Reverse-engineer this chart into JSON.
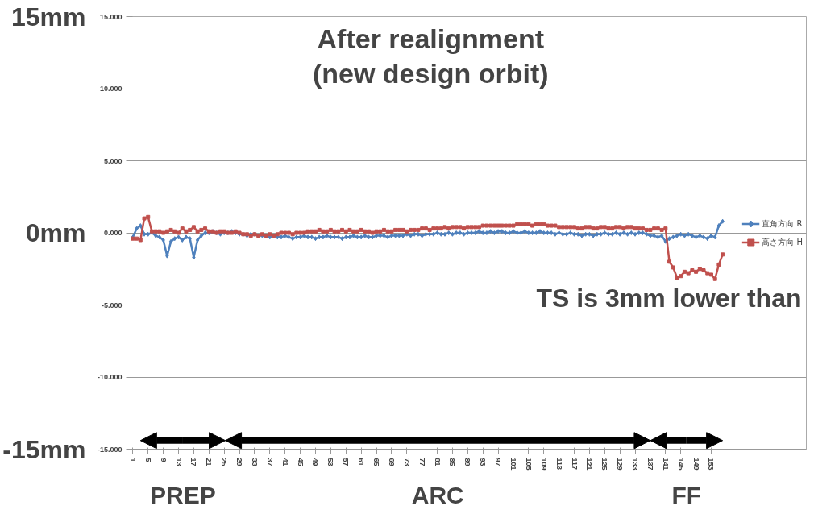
{
  "chart_data": {
    "type": "line",
    "title": "After realignment\n(new design orbit)",
    "x": [
      1,
      2,
      3,
      4,
      5,
      6,
      7,
      8,
      9,
      10,
      11,
      12,
      13,
      14,
      15,
      16,
      17,
      18,
      19,
      20,
      21,
      22,
      23,
      24,
      25,
      26,
      27,
      28,
      29,
      30,
      31,
      32,
      33,
      34,
      35,
      36,
      37,
      38,
      39,
      40,
      41,
      42,
      43,
      44,
      45,
      46,
      47,
      48,
      49,
      50,
      51,
      52,
      53,
      54,
      55,
      56,
      57,
      58,
      59,
      60,
      61,
      62,
      63,
      64,
      65,
      66,
      67,
      68,
      69,
      70,
      71,
      72,
      73,
      74,
      75,
      76,
      77,
      78,
      79,
      80,
      81,
      82,
      83,
      84,
      85,
      86,
      87,
      88,
      89,
      90,
      91,
      92,
      93,
      94,
      95,
      96,
      97,
      98,
      99,
      100,
      101,
      102,
      103,
      104,
      105,
      106,
      107,
      108,
      109,
      110,
      111,
      112,
      113,
      114,
      115,
      116,
      117,
      118,
      119,
      120,
      121,
      122,
      123,
      124,
      125,
      126,
      127,
      128,
      129,
      130,
      131,
      132,
      133,
      134,
      135,
      136,
      137,
      138,
      139,
      140,
      141,
      142,
      143,
      144,
      145,
      146,
      147,
      148,
      149,
      150,
      151,
      152,
      153,
      154,
      155,
      156
    ],
    "series": [
      {
        "name": "直角方向 R",
        "color": "#4f81bd",
        "marker": "diamond",
        "values": [
          -0.3,
          0.3,
          0.5,
          -0.1,
          -0.1,
          0,
          -0.2,
          -0.3,
          -0.5,
          -1.6,
          -0.6,
          -0.4,
          -0.3,
          -0.5,
          -0.3,
          -0.4,
          -1.7,
          -0.5,
          -0.2,
          0,
          0,
          0.1,
          0,
          -0.1,
          0,
          0,
          0.1,
          0,
          -0.1,
          -0.1,
          -0.2,
          -0.1,
          -0.1,
          -0.2,
          -0.2,
          -0.2,
          -0.3,
          -0.2,
          -0.3,
          -0.3,
          -0.2,
          -0.3,
          -0.4,
          -0.3,
          -0.3,
          -0.2,
          -0.3,
          -0.3,
          -0.4,
          -0.3,
          -0.3,
          -0.2,
          -0.3,
          -0.3,
          -0.3,
          -0.4,
          -0.3,
          -0.3,
          -0.2,
          -0.3,
          -0.3,
          -0.2,
          -0.3,
          -0.3,
          -0.2,
          -0.2,
          -0.2,
          -0.3,
          -0.2,
          -0.2,
          -0.2,
          -0.2,
          -0.1,
          -0.2,
          -0.1,
          -0.1,
          -0.2,
          -0.1,
          -0.1,
          -0.1,
          0,
          -0.1,
          -0.1,
          0,
          -0.1,
          0,
          0,
          -0.1,
          0,
          0,
          0,
          0.1,
          0,
          0,
          0.1,
          0,
          0.1,
          0.1,
          0,
          0,
          0.1,
          0,
          0,
          0.1,
          0,
          0,
          0,
          0.1,
          0,
          0,
          0,
          -0.1,
          0,
          -0.1,
          -0.1,
          0,
          -0.1,
          -0.1,
          -0.2,
          -0.1,
          -0.1,
          -0.2,
          -0.1,
          -0.1,
          0,
          -0.1,
          -0.1,
          0,
          -0.1,
          0,
          -0.1,
          0,
          -0.1,
          0,
          0,
          -0.1,
          -0.2,
          -0.2,
          -0.3,
          -0.2,
          -0.6,
          -0.4,
          -0.3,
          -0.2,
          -0.1,
          -0.2,
          -0.1,
          -0.2,
          -0.3,
          -0.2,
          -0.3,
          -0.4,
          -0.2,
          -0.3,
          0.5,
          0.8
        ]
      },
      {
        "name": "高さ方向 H",
        "color": "#c0504d",
        "marker": "square",
        "values": [
          -0.4,
          -0.4,
          -0.5,
          1.0,
          1.1,
          0.1,
          0.1,
          0.1,
          0,
          0.1,
          0.2,
          0.1,
          0,
          0.3,
          0.1,
          0.2,
          0.4,
          0.1,
          0.2,
          0.3,
          0.1,
          0.1,
          0,
          0.1,
          0.1,
          0,
          0,
          0.1,
          0,
          -0.1,
          -0.1,
          -0.2,
          -0.1,
          -0.2,
          -0.1,
          -0.2,
          -0.1,
          -0.2,
          -0.1,
          0,
          0,
          0,
          -0.1,
          0,
          0,
          0,
          0.1,
          0.1,
          0.1,
          0.2,
          0.1,
          0.1,
          0.2,
          0.1,
          0.1,
          0.2,
          0.1,
          0.2,
          0.1,
          0.1,
          0.2,
          0.1,
          0.1,
          0,
          0.1,
          0.1,
          0.2,
          0.1,
          0.1,
          0.2,
          0.2,
          0.2,
          0.1,
          0.2,
          0.2,
          0.2,
          0.3,
          0.3,
          0.2,
          0.3,
          0.3,
          0.3,
          0.4,
          0.3,
          0.4,
          0.4,
          0.4,
          0.3,
          0.4,
          0.4,
          0.4,
          0.4,
          0.5,
          0.5,
          0.5,
          0.5,
          0.5,
          0.5,
          0.5,
          0.5,
          0.5,
          0.6,
          0.6,
          0.6,
          0.6,
          0.5,
          0.6,
          0.6,
          0.6,
          0.5,
          0.5,
          0.5,
          0.4,
          0.4,
          0.4,
          0.4,
          0.4,
          0.3,
          0.3,
          0.4,
          0.4,
          0.3,
          0.3,
          0.4,
          0.4,
          0.3,
          0.3,
          0.4,
          0.4,
          0.3,
          0.4,
          0.4,
          0.3,
          0.3,
          0.3,
          0.2,
          0.2,
          0.3,
          0.3,
          0.2,
          0.3,
          -2.0,
          -2.4,
          -3.1,
          -3.0,
          -2.7,
          -2.8,
          -2.6,
          -2.7,
          -2.5,
          -2.6,
          -2.8,
          -2.9,
          -3.2,
          -2.2,
          -1.5
        ]
      }
    ],
    "xlim": [
      0.5,
      178
    ],
    "xticks": [
      1,
      5,
      9,
      13,
      17,
      21,
      25,
      29,
      33,
      37,
      41,
      45,
      49,
      53,
      57,
      61,
      65,
      69,
      73,
      77,
      81,
      85,
      89,
      93,
      97,
      101,
      105,
      109,
      113,
      117,
      121,
      125,
      129,
      133,
      137,
      141,
      145,
      149,
      153
    ],
    "ylim": [
      -15,
      15
    ],
    "yticks": [
      {
        "value": 15,
        "label": "15.000"
      },
      {
        "value": 10,
        "label": "10.000"
      },
      {
        "value": 5,
        "label": "5.000"
      },
      {
        "value": 0,
        "label": "0.000"
      },
      {
        "value": -5,
        "label": "-5.000"
      },
      {
        "value": -10,
        "label": "-10.000"
      },
      {
        "value": -15,
        "label": "-15.000"
      }
    ],
    "grid": "y",
    "legend": "right",
    "line_style": "solid",
    "annotations": [
      "15mm",
      "0mm",
      "-15mm",
      "PREP",
      "ARC",
      "FF",
      "TS is 3mm lower than"
    ]
  }
}
